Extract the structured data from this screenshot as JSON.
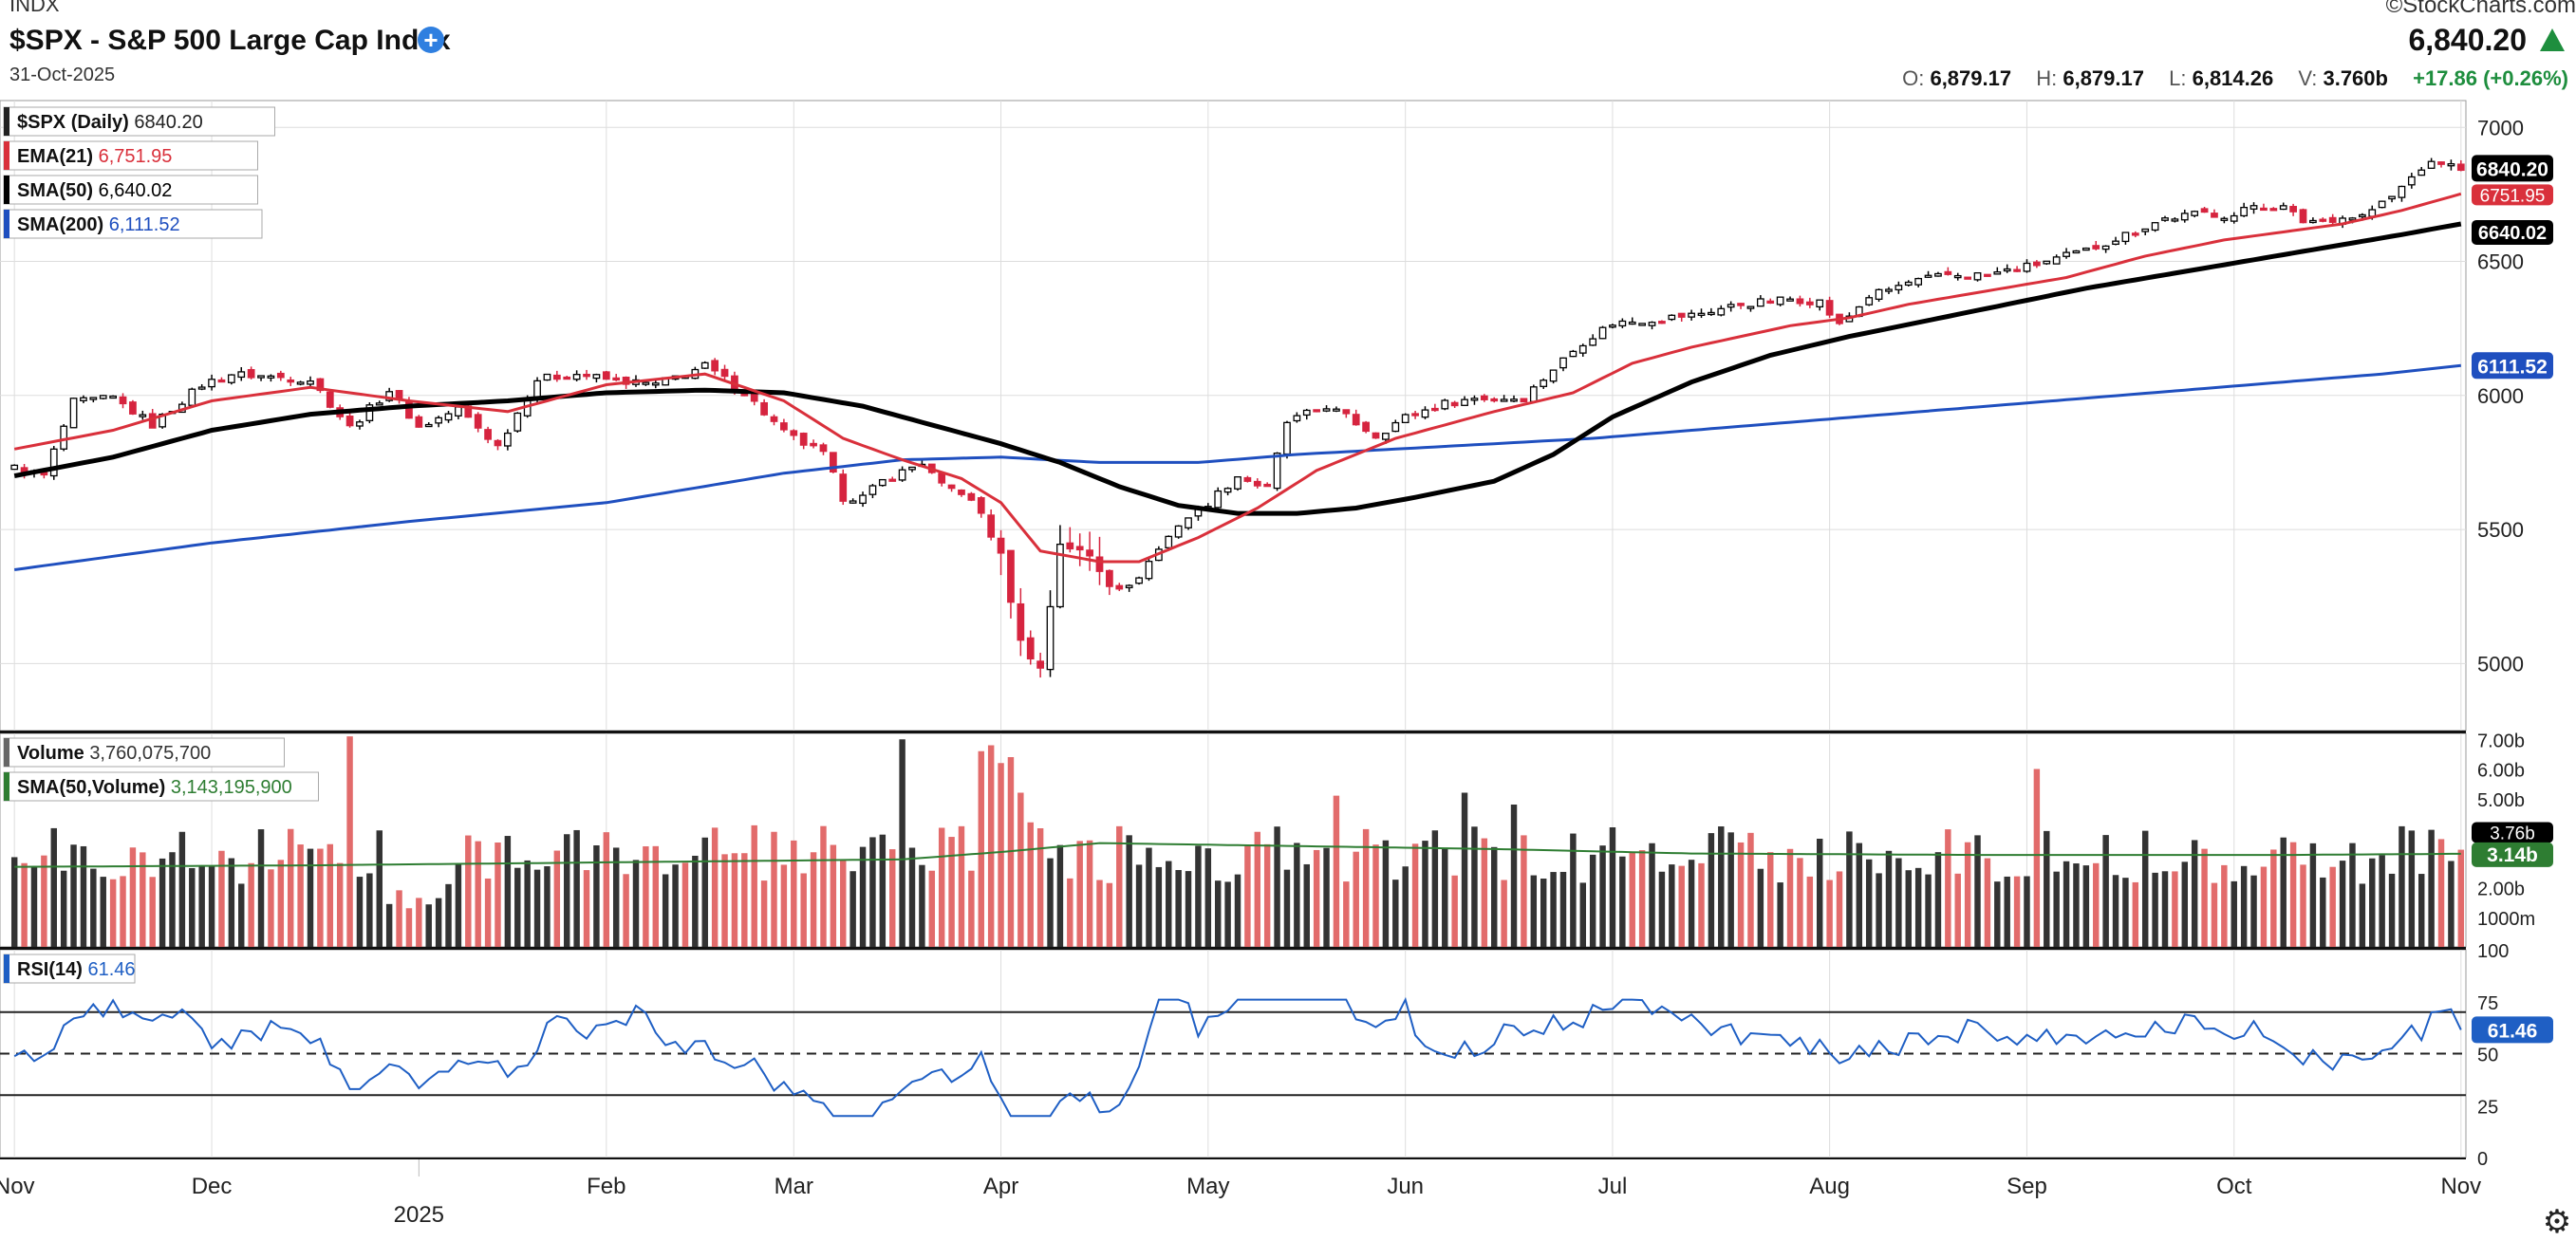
{
  "header": {
    "exchange": "INDX",
    "title": "$SPX - S&P 500 Large Cap Index",
    "date": "31-Oct-2025",
    "brand": "©StockCharts.com",
    "last": "6,840.20",
    "o_label": "O:",
    "o": "6,879.17",
    "h_label": "H:",
    "h": "6,879.17",
    "l_label": "L:",
    "l": "6,814.26",
    "v_label": "V:",
    "v": "3.760b",
    "change": "+17.86 (+0.26%)"
  },
  "colors": {
    "up": "#ffffff",
    "down": "#d6243f",
    "ema": "#d9303b",
    "sma50": "#000000",
    "sma200": "#1f4fbf",
    "volsma": "#2e7d32",
    "rsi": "#1f5fc4",
    "grid": "#dddddd"
  },
  "chart_data": [
    {
      "type": "line",
      "panel": "price",
      "legend": [
        {
          "label": "$SPX (Daily)",
          "value": "6840.20",
          "color": "#222222"
        },
        {
          "label": "EMA(21)",
          "value": "6,751.95",
          "color": "#d9303b"
        },
        {
          "label": "SMA(50)",
          "value": "6,640.02",
          "color": "#000000"
        },
        {
          "label": "SMA(200)",
          "value": "6,111.52",
          "color": "#1f4fbf"
        }
      ],
      "y_ticks": [
        "7000",
        "6500",
        "6000",
        "5500",
        "5000"
      ],
      "ylim": [
        4750,
        7100
      ],
      "y_tags": [
        {
          "text": "6840.20",
          "value": 6840.2,
          "bg": "#000000"
        },
        {
          "text": "6751.95",
          "value": 6751.95,
          "bg": "#d9303b"
        },
        {
          "text": "6640.02",
          "value": 6640.02,
          "bg": "#000000"
        },
        {
          "text": "6111.52",
          "value": 6111.52,
          "bg": "#1f4fbf"
        }
      ],
      "x_months": [
        {
          "label": "Nov",
          "day": 0
        },
        {
          "label": "Dec",
          "day": 20
        },
        {
          "label": "Feb",
          "day": 60
        },
        {
          "label": "Mar",
          "day": 79
        },
        {
          "label": "Apr",
          "day": 100
        },
        {
          "label": "May",
          "day": 121
        },
        {
          "label": "Jun",
          "day": 141
        },
        {
          "label": "Jul",
          "day": 162
        },
        {
          "label": "Aug",
          "day": 184
        },
        {
          "label": "Sep",
          "day": 204
        },
        {
          "label": "Oct",
          "day": 225
        },
        {
          "label": "Nov",
          "day": 248
        }
      ],
      "year_label": {
        "label": "2025",
        "day": 41
      },
      "days": 249,
      "close_anchors": [
        [
          0,
          5730
        ],
        [
          3,
          5700
        ],
        [
          6,
          5975
        ],
        [
          10,
          5990
        ],
        [
          14,
          5890
        ],
        [
          19,
          6040
        ],
        [
          22,
          6080
        ],
        [
          30,
          6060
        ],
        [
          34,
          5880
        ],
        [
          38,
          6020
        ],
        [
          41,
          5880
        ],
        [
          45,
          5950
        ],
        [
          49,
          5810
        ],
        [
          53,
          6060
        ],
        [
          57,
          6080
        ],
        [
          60,
          6060
        ],
        [
          65,
          6040
        ],
        [
          70,
          6110
        ],
        [
          74,
          6010
        ],
        [
          78,
          5860
        ],
        [
          82,
          5780
        ],
        [
          84,
          5620
        ],
        [
          86,
          5620
        ],
        [
          88,
          5680
        ],
        [
          92,
          5750
        ],
        [
          94,
          5660
        ],
        [
          96,
          5640
        ],
        [
          98,
          5560
        ],
        [
          100,
          5400
        ],
        [
          102,
          5080
        ],
        [
          104,
          4980
        ],
        [
          106,
          5450
        ],
        [
          109,
          5400
        ],
        [
          111,
          5300
        ],
        [
          113,
          5280
        ],
        [
          115,
          5380
        ],
        [
          118,
          5520
        ],
        [
          121,
          5600
        ],
        [
          124,
          5700
        ],
        [
          127,
          5650
        ],
        [
          129,
          5900
        ],
        [
          133,
          5960
        ],
        [
          135,
          5920
        ],
        [
          138,
          5850
        ],
        [
          141,
          5920
        ],
        [
          145,
          5970
        ],
        [
          148,
          5990
        ],
        [
          153,
          5990
        ],
        [
          156,
          6100
        ],
        [
          159,
          6200
        ],
        [
          162,
          6270
        ],
        [
          165,
          6280
        ],
        [
          170,
          6300
        ],
        [
          175,
          6340
        ],
        [
          180,
          6360
        ],
        [
          183,
          6350
        ],
        [
          185,
          6260
        ],
        [
          188,
          6370
        ],
        [
          192,
          6420
        ],
        [
          196,
          6450
        ],
        [
          200,
          6450
        ],
        [
          204,
          6480
        ],
        [
          207,
          6510
        ],
        [
          210,
          6540
        ],
        [
          214,
          6600
        ],
        [
          218,
          6660
        ],
        [
          222,
          6680
        ],
        [
          225,
          6670
        ],
        [
          227,
          6710
        ],
        [
          230,
          6700
        ],
        [
          232,
          6650
        ],
        [
          235,
          6660
        ],
        [
          238,
          6670
        ],
        [
          241,
          6740
        ],
        [
          244,
          6850
        ],
        [
          246,
          6870
        ],
        [
          248,
          6840.2
        ]
      ],
      "ema21_anchors": [
        [
          0,
          5800
        ],
        [
          10,
          5870
        ],
        [
          20,
          5980
        ],
        [
          30,
          6030
        ],
        [
          40,
          5980
        ],
        [
          50,
          5940
        ],
        [
          60,
          6040
        ],
        [
          70,
          6080
        ],
        [
          78,
          5980
        ],
        [
          84,
          5840
        ],
        [
          90,
          5760
        ],
        [
          96,
          5690
        ],
        [
          100,
          5600
        ],
        [
          104,
          5420
        ],
        [
          110,
          5380
        ],
        [
          114,
          5380
        ],
        [
          120,
          5470
        ],
        [
          126,
          5580
        ],
        [
          132,
          5720
        ],
        [
          140,
          5840
        ],
        [
          150,
          5940
        ],
        [
          158,
          6010
        ],
        [
          164,
          6120
        ],
        [
          170,
          6180
        ],
        [
          180,
          6260
        ],
        [
          186,
          6290
        ],
        [
          192,
          6340
        ],
        [
          200,
          6390
        ],
        [
          208,
          6440
        ],
        [
          216,
          6520
        ],
        [
          224,
          6580
        ],
        [
          230,
          6610
        ],
        [
          236,
          6640
        ],
        [
          242,
          6690
        ],
        [
          248,
          6751.95
        ]
      ],
      "sma50_anchors": [
        [
          0,
          5700
        ],
        [
          10,
          5770
        ],
        [
          20,
          5870
        ],
        [
          30,
          5930
        ],
        [
          40,
          5960
        ],
        [
          50,
          5980
        ],
        [
          60,
          6010
        ],
        [
          70,
          6020
        ],
        [
          78,
          6010
        ],
        [
          86,
          5960
        ],
        [
          94,
          5880
        ],
        [
          100,
          5820
        ],
        [
          106,
          5750
        ],
        [
          112,
          5660
        ],
        [
          118,
          5590
        ],
        [
          124,
          5560
        ],
        [
          130,
          5560
        ],
        [
          136,
          5580
        ],
        [
          142,
          5620
        ],
        [
          150,
          5680
        ],
        [
          156,
          5780
        ],
        [
          162,
          5920
        ],
        [
          170,
          6050
        ],
        [
          178,
          6150
        ],
        [
          186,
          6220
        ],
        [
          194,
          6280
        ],
        [
          202,
          6340
        ],
        [
          210,
          6400
        ],
        [
          218,
          6450
        ],
        [
          226,
          6500
        ],
        [
          234,
          6550
        ],
        [
          242,
          6600
        ],
        [
          248,
          6640.02
        ]
      ],
      "sma200_anchors": [
        [
          0,
          5350
        ],
        [
          20,
          5450
        ],
        [
          40,
          5530
        ],
        [
          60,
          5600
        ],
        [
          78,
          5710
        ],
        [
          90,
          5760
        ],
        [
          100,
          5770
        ],
        [
          110,
          5750
        ],
        [
          120,
          5750
        ],
        [
          130,
          5780
        ],
        [
          140,
          5800
        ],
        [
          150,
          5820
        ],
        [
          160,
          5840
        ],
        [
          170,
          5870
        ],
        [
          180,
          5900
        ],
        [
          190,
          5930
        ],
        [
          200,
          5960
        ],
        [
          210,
          5990
        ],
        [
          220,
          6020
        ],
        [
          230,
          6050
        ],
        [
          240,
          6080
        ],
        [
          248,
          6111.52
        ]
      ]
    },
    {
      "type": "bar",
      "panel": "volume",
      "legend": [
        {
          "label": "Volume",
          "value": "3,760,075,700",
          "color": "#666666"
        },
        {
          "label": "SMA(50,Volume)",
          "value": "3,143,195,900",
          "color": "#2e7d32"
        }
      ],
      "y_ticks": [
        "7.00b",
        "6.00b",
        "5.00b",
        "2.00b",
        "1000m"
      ],
      "y_tick_values": [
        7.0,
        6.0,
        5.0,
        2.0,
        1.0
      ],
      "ylim": [
        0,
        7.2
      ],
      "unit": "billions",
      "y_tags": [
        {
          "text": "3.76b",
          "value": 3.76,
          "bg": "#000000"
        },
        {
          "text": "3.14b",
          "value": 3.14,
          "bg": "#2e7d32"
        }
      ],
      "spikes": [
        [
          34,
          7.1
        ],
        [
          90,
          7.0
        ],
        [
          98,
          6.6
        ],
        [
          99,
          6.8
        ],
        [
          100,
          6.2
        ],
        [
          101,
          6.4
        ],
        [
          102,
          5.2
        ],
        [
          103,
          4.2
        ],
        [
          134,
          5.1
        ],
        [
          147,
          5.2
        ],
        [
          152,
          4.8
        ],
        [
          205,
          6.0
        ],
        [
          237,
          3.5
        ]
      ],
      "vol_sma_anchors": [
        [
          0,
          2.7
        ],
        [
          30,
          2.75
        ],
        [
          60,
          2.85
        ],
        [
          90,
          2.95
        ],
        [
          100,
          3.2
        ],
        [
          110,
          3.5
        ],
        [
          130,
          3.4
        ],
        [
          150,
          3.3
        ],
        [
          170,
          3.15
        ],
        [
          200,
          3.1
        ],
        [
          230,
          3.1
        ],
        [
          248,
          3.14
        ]
      ]
    },
    {
      "type": "line",
      "panel": "rsi",
      "legend": [
        {
          "label": "RSI(14)",
          "value": "61.46",
          "color": "#1f5fc4"
        }
      ],
      "y_ticks": [
        "100",
        "75",
        "50",
        "25",
        "0"
      ],
      "y_tick_values": [
        100,
        75,
        50,
        25,
        0
      ],
      "ylim": [
        0,
        100
      ],
      "lines": [
        70,
        50,
        30
      ],
      "y_tags": [
        {
          "text": "61.46",
          "value": 61.46,
          "bg": "#1f5fc4"
        }
      ]
    }
  ]
}
